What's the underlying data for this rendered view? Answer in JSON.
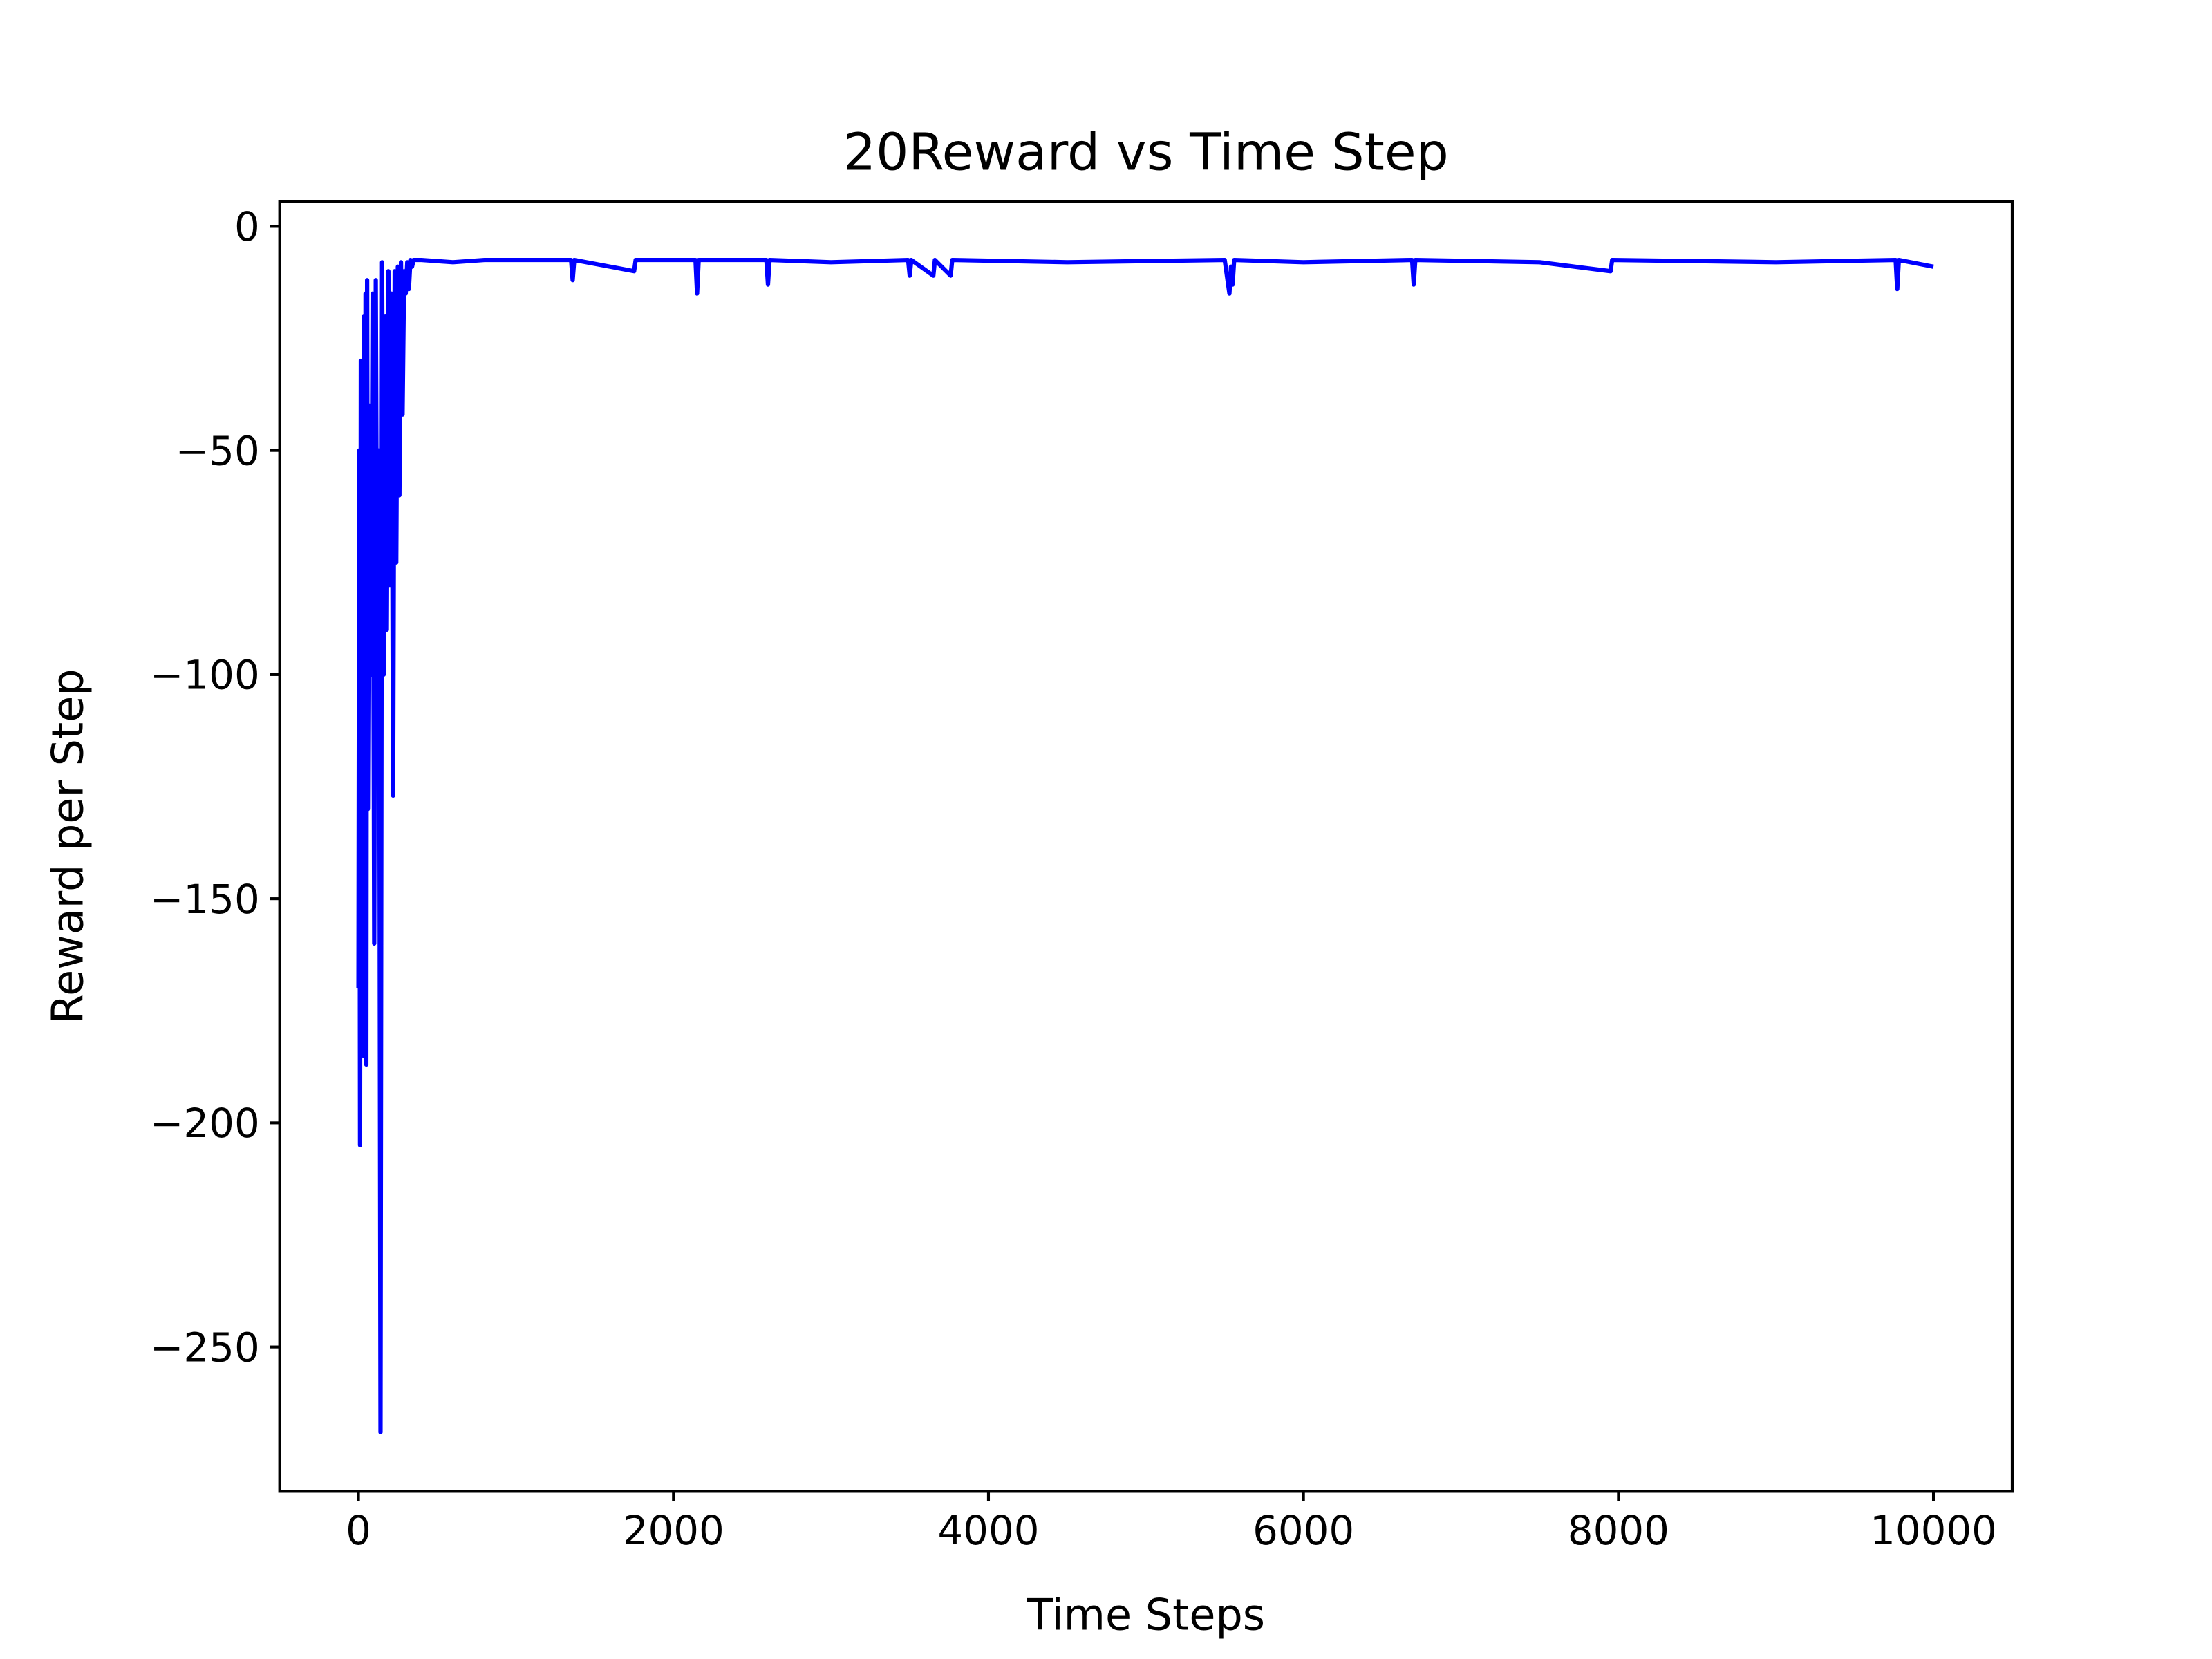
{
  "chart_data": {
    "type": "line",
    "title": "20Reward vs Time Step",
    "x_label": "Time Steps",
    "y_label": "Reward per Step",
    "x": [
      0,
      5,
      10,
      15,
      20,
      25,
      30,
      35,
      40,
      45,
      50,
      55,
      60,
      70,
      80,
      90,
      100,
      110,
      120,
      130,
      140,
      150,
      160,
      170,
      180,
      190,
      200,
      210,
      220,
      230,
      240,
      250,
      260,
      270,
      280,
      290,
      300,
      310,
      320,
      330,
      340,
      350,
      400,
      600,
      800,
      1000,
      1350,
      1360,
      1370,
      1750,
      1760,
      2140,
      2150,
      2160,
      2590,
      2600,
      2610,
      3000,
      3490,
      3500,
      3510,
      3650,
      3660,
      3760,
      3770,
      4500,
      5500,
      5530,
      5540,
      5550,
      5560,
      6000,
      6690,
      6700,
      6710,
      7500,
      7950,
      7960,
      9000,
      9760,
      9770,
      9780,
      10000
    ],
    "series": [
      {
        "name": "Reward",
        "color": "#0000ff",
        "values": [
          -170,
          -50,
          -205,
          -30,
          -120,
          -45,
          -185,
          -20,
          -150,
          -15,
          -187,
          -12,
          -130,
          -40,
          -100,
          -15,
          -160,
          -12,
          -110,
          -50,
          -269,
          -8,
          -100,
          -20,
          -90,
          -10,
          -80,
          -15,
          -127,
          -10,
          -75,
          -9,
          -60,
          -8,
          -42,
          -10,
          -15,
          -8,
          -14,
          -7.5,
          -9,
          -7.5,
          -7.5,
          -8,
          -7.5,
          -7.5,
          -7.5,
          -12,
          -7.5,
          -10,
          -7.5,
          -7.5,
          -15,
          -7.5,
          -7.5,
          -13,
          -7.5,
          -8,
          -7.5,
          -11,
          -7.5,
          -11,
          -7.5,
          -11,
          -7.5,
          -8,
          -7.5,
          -15,
          -9,
          -13,
          -7.5,
          -8,
          -7.5,
          -13,
          -7.5,
          -8,
          -10,
          -7.5,
          -8,
          -7.5,
          -14,
          -7.5,
          -9
        ]
      }
    ],
    "xlim": [
      -500,
      10500
    ],
    "xticks": [
      0,
      2000,
      4000,
      6000,
      8000,
      10000
    ],
    "ylim": [
      -282.2,
      5.6
    ],
    "yticks": [
      0,
      {
        "value": -50,
        "label": "−50"
      },
      {
        "value": -100,
        "label": "−100"
      },
      {
        "value": -150,
        "label": "−150"
      },
      {
        "value": -200,
        "label": "−200"
      },
      {
        "value": -250,
        "label": "−250"
      }
    ],
    "grid": false
  }
}
